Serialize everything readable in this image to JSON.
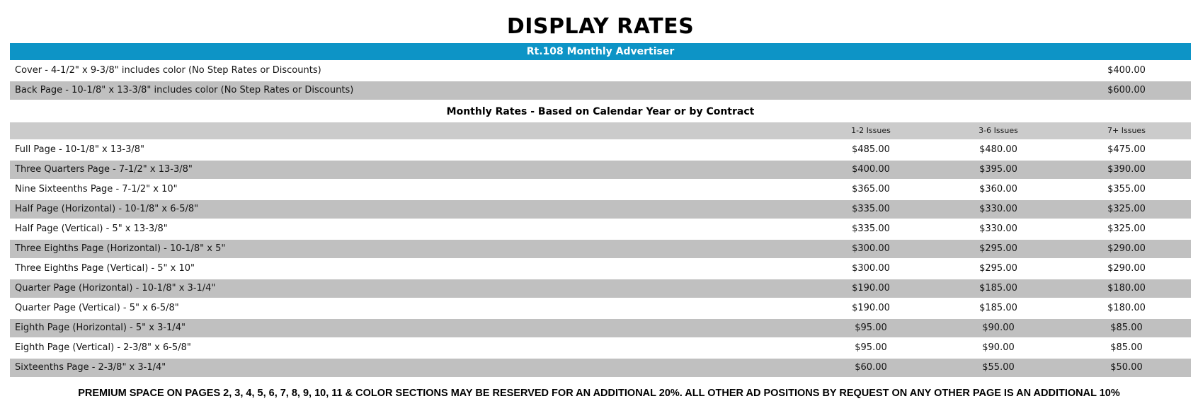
{
  "page": {
    "title": "DISPLAY RATES",
    "banner": "Rt.108 Monthly Advertiser",
    "banner_color": "#0d94c6",
    "row_shade_color": "#c0c0c0",
    "header_shade_color": "#cbcbcb"
  },
  "premium_rows": [
    {
      "label": "Cover - 4-1/2\" x 9-3/8\" includes color (No Step Rates or Discounts)",
      "price": "$400.00",
      "shade": false
    },
    {
      "label": "Back Page - 10-1/8\" x 13-3/8\" includes color (No Step Rates or Discounts)",
      "price": "$600.00",
      "shade": true
    }
  ],
  "monthly": {
    "heading": "Monthly Rates - Based on Calendar Year or by Contract",
    "columns": [
      "1-2 Issues",
      "3-6 Issues",
      "7+ Issues"
    ],
    "rows": [
      {
        "label": "Full Page - 10-1/8\" x 13-3/8\"",
        "prices": [
          "$485.00",
          "$480.00",
          "$475.00"
        ],
        "shade": false
      },
      {
        "label": "Three Quarters Page - 7-1/2\" x 13-3/8\"",
        "prices": [
          "$400.00",
          "$395.00",
          "$390.00"
        ],
        "shade": true
      },
      {
        "label": "Nine Sixteenths Page - 7-1/2\" x 10\"",
        "prices": [
          "$365.00",
          "$360.00",
          "$355.00"
        ],
        "shade": false
      },
      {
        "label": "Half Page (Horizontal) - 10-1/8\" x 6-5/8\"",
        "prices": [
          "$335.00",
          "$330.00",
          "$325.00"
        ],
        "shade": true
      },
      {
        "label": "Half Page (Vertical) - 5\" x 13-3/8\"",
        "prices": [
          "$335.00",
          "$330.00",
          "$325.00"
        ],
        "shade": false
      },
      {
        "label": "Three Eighths Page (Horizontal) - 10-1/8\" x 5\"",
        "prices": [
          "$300.00",
          "$295.00",
          "$290.00"
        ],
        "shade": true
      },
      {
        "label": "Three Eighths Page (Vertical) - 5\" x 10\"",
        "prices": [
          "$300.00",
          "$295.00",
          "$290.00"
        ],
        "shade": false
      },
      {
        "label": "Quarter Page (Horizontal) - 10-1/8\" x 3-1/4\"",
        "prices": [
          "$190.00",
          "$185.00",
          "$180.00"
        ],
        "shade": true
      },
      {
        "label": "Quarter Page (Vertical) - 5\" x 6-5/8\"",
        "prices": [
          "$190.00",
          "$185.00",
          "$180.00"
        ],
        "shade": false
      },
      {
        "label": "Eighth Page (Horizontal) - 5\" x 3-1/4\"",
        "prices": [
          "$95.00",
          "$90.00",
          "$85.00"
        ],
        "shade": true
      },
      {
        "label": "Eighth Page (Vertical) - 2-3/8\" x 6-5/8\"",
        "prices": [
          "$95.00",
          "$90.00",
          "$85.00"
        ],
        "shade": false
      },
      {
        "label": "Sixteenths Page - 2-3/8\" x 3-1/4\"",
        "prices": [
          "$60.00",
          "$55.00",
          "$50.00"
        ],
        "shade": true
      }
    ]
  },
  "footer": "PREMIUM SPACE ON PAGES 2, 3, 4, 5, 6, 7, 8, 9, 10, 11 & COLOR SECTIONS MAY BE RESERVED FOR AN ADDITIONAL 20%. ALL OTHER AD POSITIONS BY REQUEST ON ANY OTHER PAGE IS AN ADDITIONAL 10%"
}
